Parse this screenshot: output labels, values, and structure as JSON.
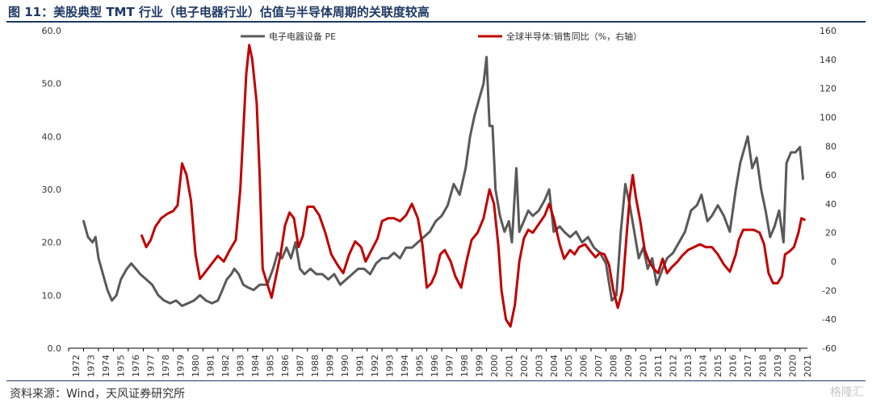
{
  "title": "图 11：美股典型 TMT 行业（电子电器行业）估值与半导体周期的关联度较高",
  "source": "资料来源：Wind，天风证券研究所",
  "watermark": "格隆汇",
  "colors": {
    "pe": "#595959",
    "semi": "#c00000",
    "title": "#1f3864",
    "axis": "#000000"
  },
  "chart_data": {
    "type": "line",
    "title": "图 11：美股典型 TMT 行业（电子电器行业）估值与半导体周期的关联度较高",
    "xlabel": "",
    "ylabel": "",
    "x_ticks": [
      "1972",
      "1973",
      "1974",
      "1975",
      "1976",
      "1977",
      "1978",
      "1979",
      "1980",
      "1981",
      "1982",
      "1983",
      "1984",
      "1985",
      "1986",
      "1987",
      "1988",
      "1989",
      "1990",
      "1991",
      "1992",
      "1993",
      "1994",
      "1995",
      "1996",
      "1997",
      "1998",
      "1999",
      "2000",
      "2001",
      "2002",
      "2003",
      "2004",
      "2005",
      "2006",
      "2007",
      "2008",
      "2009",
      "2010",
      "2011",
      "2012",
      "2013",
      "2014",
      "2015",
      "2016",
      "2017",
      "2018",
      "2019",
      "2020",
      "2021"
    ],
    "y_left": {
      "ticks": [
        "0.0",
        "10.0",
        "20.0",
        "30.0",
        "40.0",
        "50.0",
        "60.0"
      ],
      "range": [
        0,
        60
      ]
    },
    "y_right": {
      "ticks": [
        "-60",
        "-40",
        "-20",
        "0",
        "20",
        "40",
        "60",
        "80",
        "100",
        "120",
        "140",
        "160"
      ],
      "range": [
        -60,
        160
      ]
    },
    "legend_position": "top",
    "series": [
      {
        "name": "电子电器设备 PE",
        "axis": "left",
        "color": "#595959",
        "points": [
          [
            1973.0,
            24
          ],
          [
            1973.3,
            21
          ],
          [
            1973.6,
            20
          ],
          [
            1973.8,
            21
          ],
          [
            1974.0,
            17
          ],
          [
            1974.3,
            14
          ],
          [
            1974.6,
            11
          ],
          [
            1974.9,
            9
          ],
          [
            1975.2,
            10
          ],
          [
            1975.5,
            13
          ],
          [
            1975.9,
            15
          ],
          [
            1976.2,
            16
          ],
          [
            1976.5,
            15
          ],
          [
            1976.8,
            14
          ],
          [
            1977.2,
            13
          ],
          [
            1977.6,
            12
          ],
          [
            1978.0,
            10
          ],
          [
            1978.4,
            9
          ],
          [
            1978.8,
            8.5
          ],
          [
            1979.2,
            9
          ],
          [
            1979.6,
            8
          ],
          [
            1980.0,
            8.5
          ],
          [
            1980.4,
            9
          ],
          [
            1980.8,
            10
          ],
          [
            1981.2,
            9
          ],
          [
            1981.6,
            8.5
          ],
          [
            1982.0,
            9
          ],
          [
            1982.3,
            11
          ],
          [
            1982.6,
            13
          ],
          [
            1982.9,
            14
          ],
          [
            1983.1,
            15
          ],
          [
            1983.4,
            14
          ],
          [
            1983.7,
            12
          ],
          [
            1984.0,
            11.5
          ],
          [
            1984.4,
            11
          ],
          [
            1984.8,
            12
          ],
          [
            1985.3,
            12
          ],
          [
            1985.7,
            15
          ],
          [
            1986.0,
            18
          ],
          [
            1986.3,
            17
          ],
          [
            1986.6,
            19
          ],
          [
            1986.9,
            17
          ],
          [
            1987.2,
            20
          ],
          [
            1987.5,
            15
          ],
          [
            1987.8,
            14
          ],
          [
            1988.2,
            15
          ],
          [
            1988.6,
            14
          ],
          [
            1989.0,
            14
          ],
          [
            1989.4,
            13
          ],
          [
            1989.8,
            14
          ],
          [
            1990.2,
            12
          ],
          [
            1990.6,
            13
          ],
          [
            1991.0,
            14
          ],
          [
            1991.4,
            15
          ],
          [
            1991.8,
            15
          ],
          [
            1992.2,
            14
          ],
          [
            1992.6,
            16
          ],
          [
            1993.0,
            17
          ],
          [
            1993.4,
            17
          ],
          [
            1993.8,
            18
          ],
          [
            1994.2,
            17
          ],
          [
            1994.6,
            19
          ],
          [
            1995.0,
            19
          ],
          [
            1995.4,
            20
          ],
          [
            1995.8,
            21
          ],
          [
            1996.2,
            22
          ],
          [
            1996.6,
            24
          ],
          [
            1997.0,
            25
          ],
          [
            1997.4,
            27
          ],
          [
            1997.8,
            31
          ],
          [
            1998.2,
            29
          ],
          [
            1998.6,
            34
          ],
          [
            1998.9,
            40
          ],
          [
            1999.2,
            44
          ],
          [
            1999.5,
            47
          ],
          [
            1999.8,
            50
          ],
          [
            2000.0,
            55
          ],
          [
            2000.2,
            42
          ],
          [
            2000.4,
            42
          ],
          [
            2000.6,
            30
          ],
          [
            2000.9,
            25
          ],
          [
            2001.2,
            22
          ],
          [
            2001.5,
            24
          ],
          [
            2001.7,
            20
          ],
          [
            2002.0,
            34
          ],
          [
            2002.2,
            22
          ],
          [
            2002.5,
            24
          ],
          [
            2002.8,
            26
          ],
          [
            2003.1,
            25
          ],
          [
            2003.5,
            26
          ],
          [
            2003.9,
            28
          ],
          [
            2004.2,
            30
          ],
          [
            2004.5,
            22
          ],
          [
            2004.9,
            23
          ],
          [
            2005.2,
            22
          ],
          [
            2005.6,
            21
          ],
          [
            2006.0,
            22
          ],
          [
            2006.4,
            20
          ],
          [
            2006.8,
            21
          ],
          [
            2007.2,
            19
          ],
          [
            2007.6,
            18
          ],
          [
            2008.0,
            16
          ],
          [
            2008.4,
            9
          ],
          [
            2008.7,
            10
          ],
          [
            2009.0,
            22
          ],
          [
            2009.3,
            31
          ],
          [
            2009.6,
            27
          ],
          [
            2009.9,
            22
          ],
          [
            2010.2,
            17
          ],
          [
            2010.5,
            19
          ],
          [
            2010.8,
            15
          ],
          [
            2011.1,
            17
          ],
          [
            2011.4,
            12
          ],
          [
            2011.8,
            15
          ],
          [
            2012.1,
            17
          ],
          [
            2012.5,
            18
          ],
          [
            2012.9,
            20
          ],
          [
            2013.3,
            22
          ],
          [
            2013.7,
            26
          ],
          [
            2014.1,
            27
          ],
          [
            2014.4,
            29
          ],
          [
            2014.8,
            24
          ],
          [
            2015.1,
            25
          ],
          [
            2015.5,
            27
          ],
          [
            2015.9,
            25
          ],
          [
            2016.3,
            22
          ],
          [
            2016.7,
            30
          ],
          [
            2017.0,
            35
          ],
          [
            2017.3,
            38
          ],
          [
            2017.5,
            40
          ],
          [
            2017.8,
            34
          ],
          [
            2018.1,
            36
          ],
          [
            2018.4,
            30
          ],
          [
            2018.7,
            26
          ],
          [
            2019.0,
            21
          ],
          [
            2019.3,
            23
          ],
          [
            2019.6,
            26
          ],
          [
            2019.9,
            20
          ],
          [
            2020.1,
            35
          ],
          [
            2020.4,
            37
          ],
          [
            2020.7,
            37
          ],
          [
            2021.0,
            38
          ],
          [
            2021.2,
            32
          ]
        ]
      },
      {
        "name": "全球半导体:销售同比（%，右轴）",
        "axis": "right",
        "color": "#c00000",
        "points": [
          [
            1976.9,
            18
          ],
          [
            1977.2,
            10
          ],
          [
            1977.5,
            15
          ],
          [
            1977.8,
            24
          ],
          [
            1978.2,
            30
          ],
          [
            1978.6,
            33
          ],
          [
            1979.0,
            35
          ],
          [
            1979.3,
            39
          ],
          [
            1979.6,
            68
          ],
          [
            1979.9,
            60
          ],
          [
            1980.2,
            42
          ],
          [
            1980.5,
            5
          ],
          [
            1980.8,
            -12
          ],
          [
            1981.1,
            -8
          ],
          [
            1981.4,
            -4
          ],
          [
            1981.7,
            0
          ],
          [
            1982.0,
            4
          ],
          [
            1982.4,
            0
          ],
          [
            1982.8,
            8
          ],
          [
            1983.2,
            15
          ],
          [
            1983.5,
            50
          ],
          [
            1983.7,
            90
          ],
          [
            1983.9,
            130
          ],
          [
            1984.1,
            150
          ],
          [
            1984.3,
            140
          ],
          [
            1984.6,
            110
          ],
          [
            1984.8,
            60
          ],
          [
            1985.0,
            -5
          ],
          [
            1985.3,
            -15
          ],
          [
            1985.6,
            -25
          ],
          [
            1985.9,
            -10
          ],
          [
            1986.2,
            5
          ],
          [
            1986.5,
            25
          ],
          [
            1986.8,
            34
          ],
          [
            1987.1,
            30
          ],
          [
            1987.4,
            10
          ],
          [
            1987.7,
            18
          ],
          [
            1988.0,
            38
          ],
          [
            1988.4,
            38
          ],
          [
            1988.8,
            32
          ],
          [
            1989.2,
            20
          ],
          [
            1989.6,
            5
          ],
          [
            1990.0,
            -2
          ],
          [
            1990.4,
            -8
          ],
          [
            1990.8,
            5
          ],
          [
            1991.2,
            14
          ],
          [
            1991.6,
            10
          ],
          [
            1991.9,
            0
          ],
          [
            1992.3,
            8
          ],
          [
            1992.7,
            16
          ],
          [
            1993.0,
            28
          ],
          [
            1993.4,
            30
          ],
          [
            1993.8,
            30
          ],
          [
            1994.2,
            28
          ],
          [
            1994.6,
            32
          ],
          [
            1995.0,
            40
          ],
          [
            1995.4,
            30
          ],
          [
            1995.7,
            12
          ],
          [
            1996.0,
            -18
          ],
          [
            1996.3,
            -15
          ],
          [
            1996.6,
            -8
          ],
          [
            1996.9,
            5
          ],
          [
            1997.2,
            8
          ],
          [
            1997.6,
            0
          ],
          [
            1997.9,
            -10
          ],
          [
            1998.3,
            -18
          ],
          [
            1998.7,
            2
          ],
          [
            1999.0,
            15
          ],
          [
            1999.4,
            20
          ],
          [
            1999.8,
            30
          ],
          [
            2000.2,
            50
          ],
          [
            2000.5,
            40
          ],
          [
            2000.8,
            10
          ],
          [
            2001.0,
            -20
          ],
          [
            2001.3,
            -40
          ],
          [
            2001.6,
            -45
          ],
          [
            2001.9,
            -30
          ],
          [
            2002.2,
            0
          ],
          [
            2002.5,
            16
          ],
          [
            2002.8,
            22
          ],
          [
            2003.1,
            20
          ],
          [
            2003.5,
            26
          ],
          [
            2003.9,
            32
          ],
          [
            2004.2,
            40
          ],
          [
            2004.5,
            30
          ],
          [
            2004.9,
            12
          ],
          [
            2005.2,
            2
          ],
          [
            2005.6,
            8
          ],
          [
            2005.9,
            5
          ],
          [
            2006.2,
            10
          ],
          [
            2006.6,
            12
          ],
          [
            2006.9,
            8
          ],
          [
            2007.3,
            3
          ],
          [
            2007.6,
            6
          ],
          [
            2007.9,
            5
          ],
          [
            2008.2,
            -2
          ],
          [
            2008.5,
            -20
          ],
          [
            2008.8,
            -32
          ],
          [
            2009.1,
            -20
          ],
          [
            2009.4,
            20
          ],
          [
            2009.6,
            45
          ],
          [
            2009.8,
            60
          ],
          [
            2010.0,
            45
          ],
          [
            2010.3,
            28
          ],
          [
            2010.6,
            8
          ],
          [
            2010.9,
            0
          ],
          [
            2011.2,
            -5
          ],
          [
            2011.5,
            -8
          ],
          [
            2011.8,
            2
          ],
          [
            2012.1,
            -8
          ],
          [
            2012.4,
            -4
          ],
          [
            2012.8,
            0
          ],
          [
            2013.1,
            4
          ],
          [
            2013.5,
            8
          ],
          [
            2013.9,
            10
          ],
          [
            2014.3,
            12
          ],
          [
            2014.7,
            10
          ],
          [
            2015.1,
            10
          ],
          [
            2015.5,
            5
          ],
          [
            2015.9,
            -2
          ],
          [
            2016.3,
            -7
          ],
          [
            2016.7,
            5
          ],
          [
            2016.9,
            15
          ],
          [
            2017.2,
            22
          ],
          [
            2017.6,
            22
          ],
          [
            2017.9,
            22
          ],
          [
            2018.3,
            20
          ],
          [
            2018.6,
            12
          ],
          [
            2018.9,
            -8
          ],
          [
            2019.2,
            -15
          ],
          [
            2019.5,
            -15
          ],
          [
            2019.8,
            -10
          ],
          [
            2020.0,
            5
          ],
          [
            2020.3,
            7
          ],
          [
            2020.6,
            10
          ],
          [
            2020.9,
            20
          ],
          [
            2021.1,
            30
          ],
          [
            2021.3,
            29
          ]
        ]
      }
    ]
  }
}
